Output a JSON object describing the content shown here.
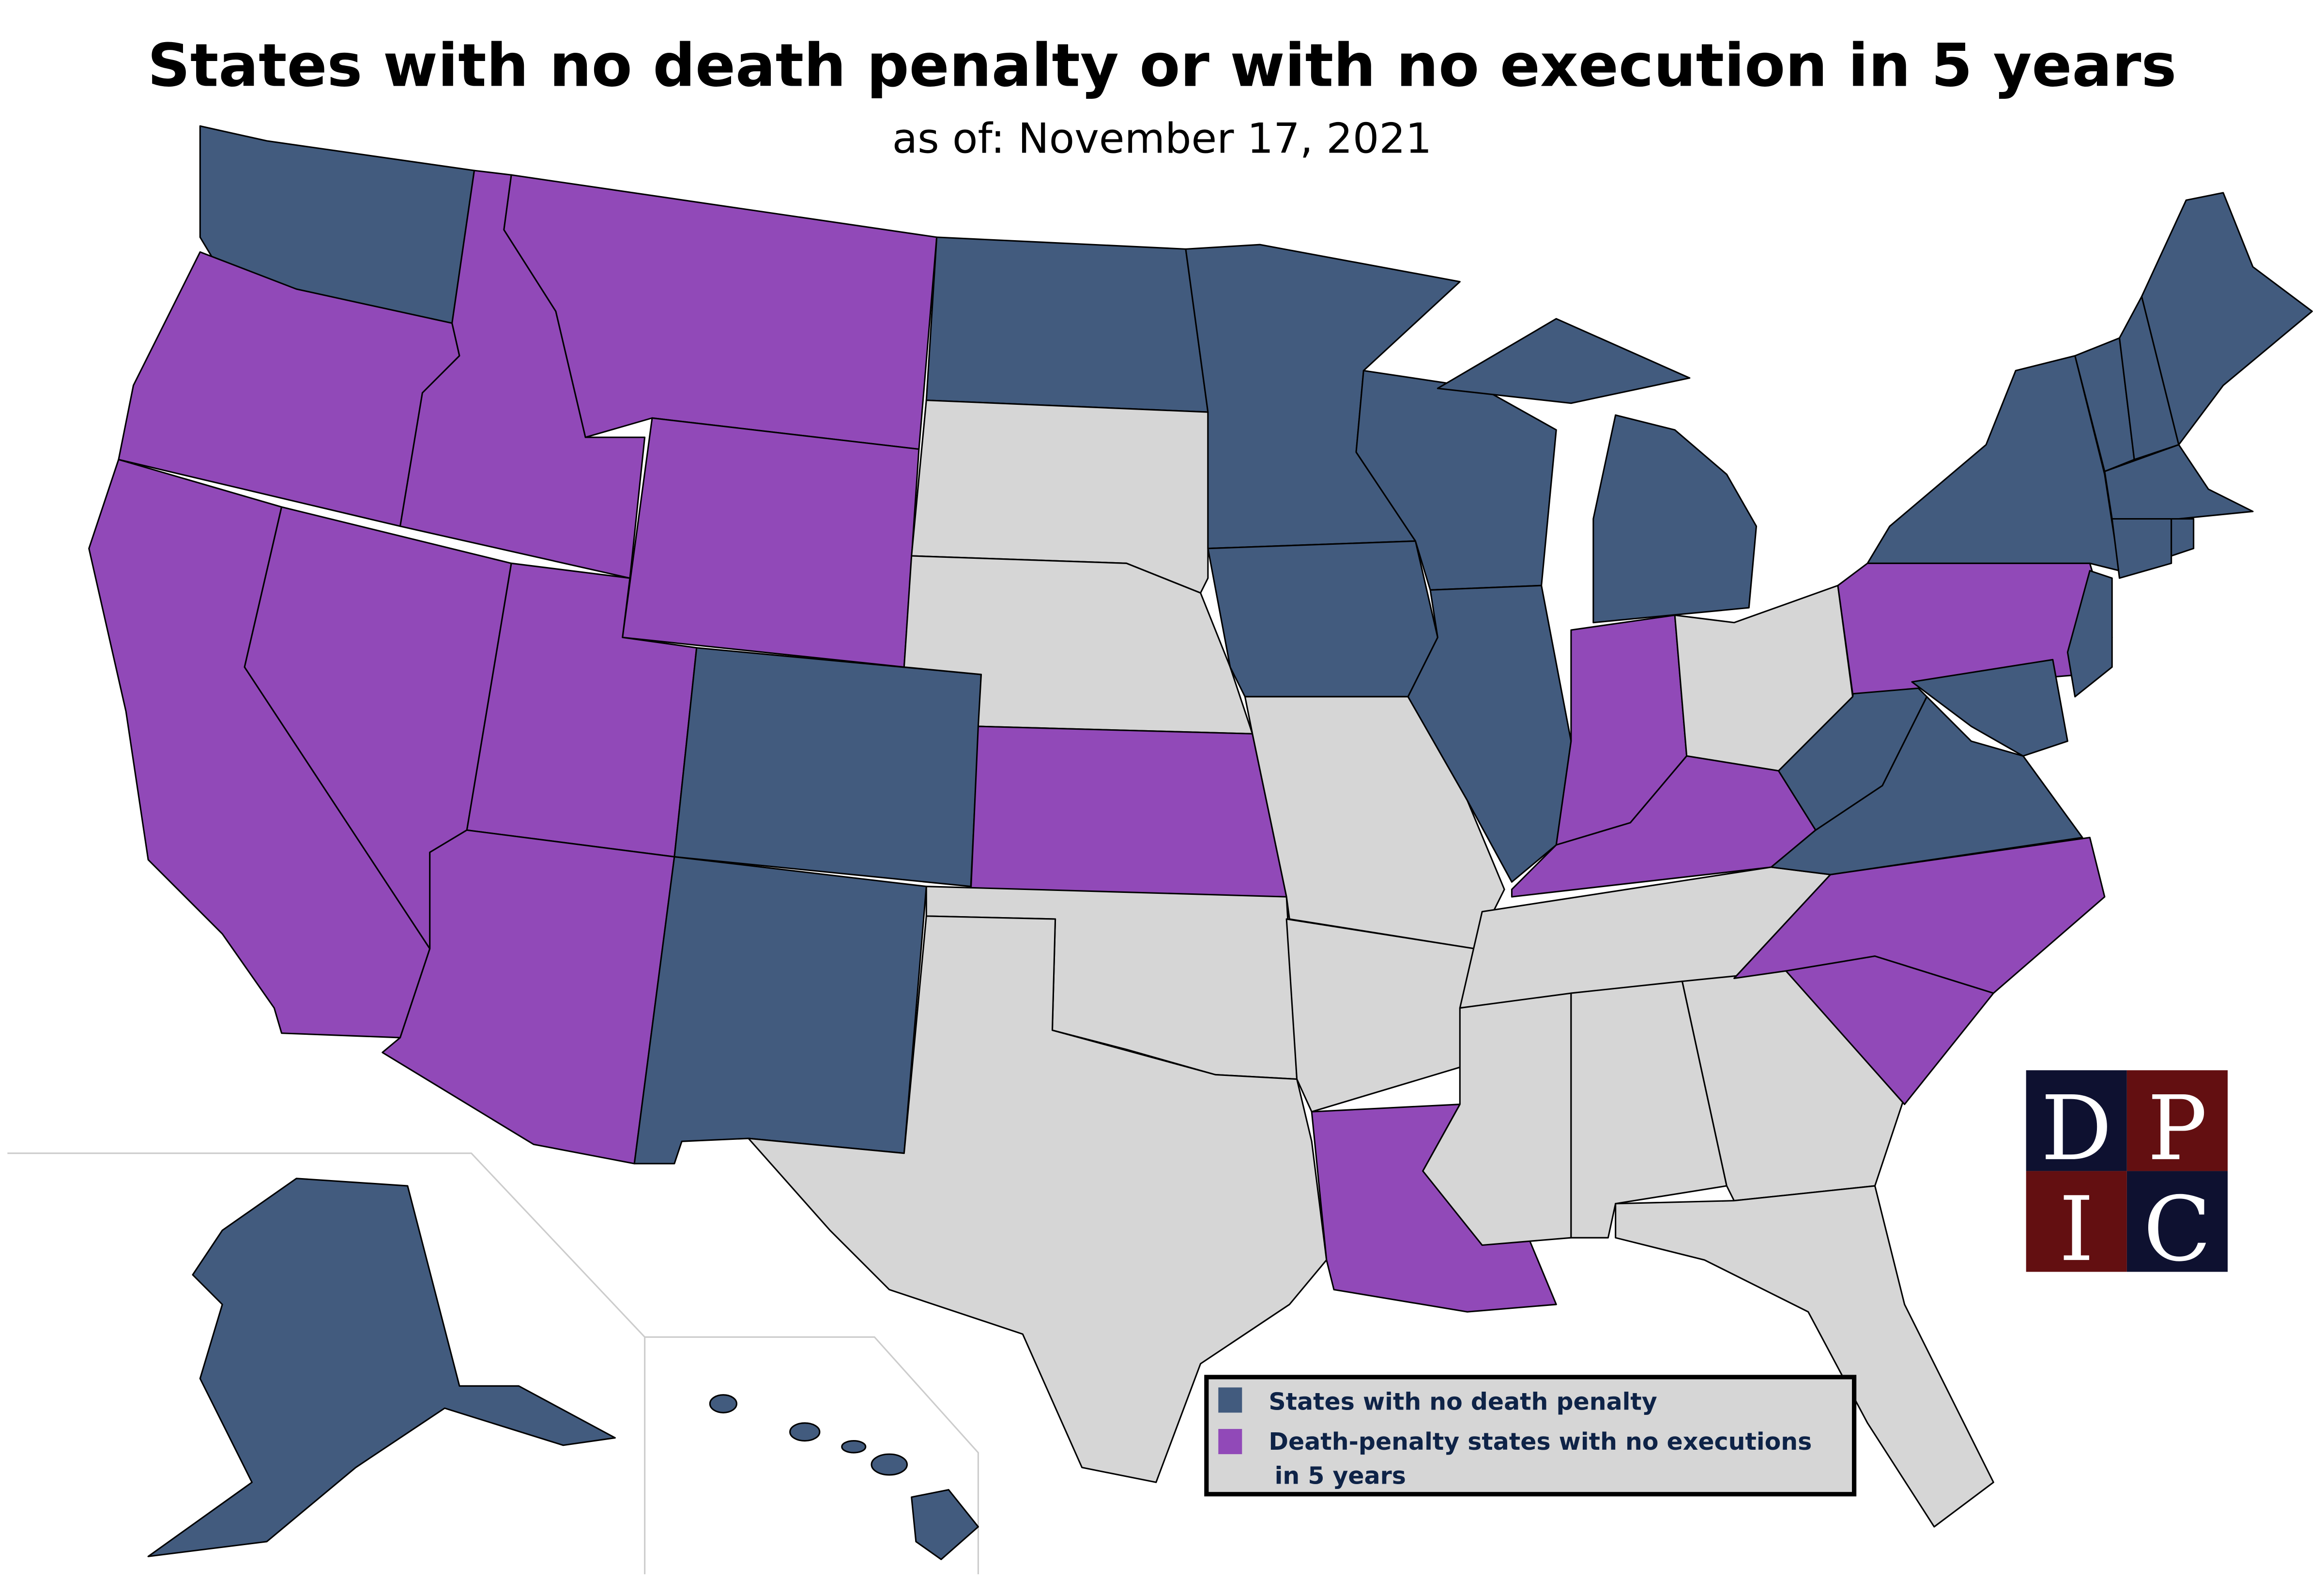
{
  "header": {
    "title": "States with no death penalty or with no execution in 5 years",
    "subtitle": "as of: November 17, 2021"
  },
  "legend": {
    "items": [
      {
        "label": "States with no death penalty",
        "color": "#425b7e"
      },
      {
        "label": "Death-penalty states with no executions",
        "label_line2": "in 5 years",
        "color": "#9149b8"
      }
    ]
  },
  "colors": {
    "other": "#d6d6d6",
    "logo_navy": "#0e1130",
    "logo_red": "#630f11"
  },
  "logo": {
    "letters": [
      "D",
      "P",
      "I",
      "C"
    ]
  }
}
